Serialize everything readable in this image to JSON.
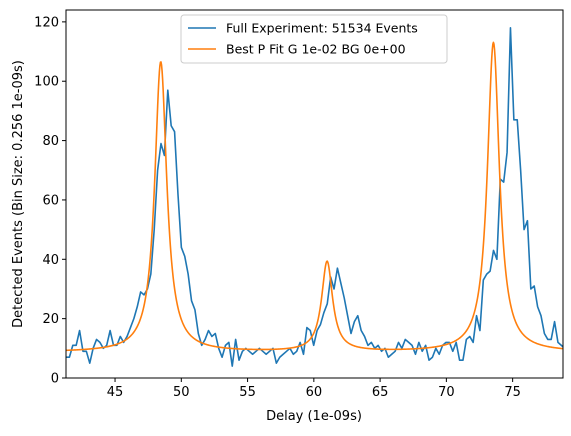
{
  "chart_data": {
    "type": "line",
    "xlabel": "Delay (1e-09s)",
    "ylabel": "Detected Events (Bin Size: 0.256 1e-09s)",
    "xlim": [
      41.3,
      78.8
    ],
    "ylim": [
      0,
      124
    ],
    "xticks": [
      45,
      50,
      55,
      60,
      65,
      70,
      75
    ],
    "xtick_labels": [
      "45",
      "50",
      "55",
      "60",
      "65",
      "70",
      "75"
    ],
    "yticks": [
      0,
      20,
      40,
      60,
      80,
      100,
      120
    ],
    "ytick_labels": [
      "0",
      "20",
      "40",
      "60",
      "80",
      "100",
      "120"
    ],
    "grid": false,
    "legend_position": "top-center",
    "series": [
      {
        "name": "Full Experiment: 51534 Events",
        "color": "#1f77b4",
        "x_start": 41.3,
        "x_step": 0.256,
        "values": [
          7,
          7,
          11,
          11,
          16,
          9,
          9,
          5,
          10,
          13,
          12,
          10,
          11,
          16,
          11,
          11,
          14,
          12,
          14,
          17,
          20,
          24,
          29,
          28,
          30,
          35,
          50,
          70,
          79,
          75,
          97,
          85,
          83,
          62,
          44,
          41,
          35,
          26,
          23,
          15,
          11,
          13,
          16,
          14,
          15,
          10,
          7,
          11,
          12,
          4,
          13,
          6,
          9,
          10,
          9,
          8,
          9,
          10,
          9,
          8,
          9,
          10,
          5,
          7,
          8,
          9,
          10,
          8,
          9,
          12,
          8,
          17,
          16,
          11,
          16,
          18,
          22,
          25,
          34,
          30,
          37,
          32,
          27,
          21,
          15,
          19,
          21,
          16,
          14,
          11,
          12,
          10,
          11,
          9,
          10,
          7,
          8,
          9,
          12,
          10,
          13,
          12,
          11,
          8,
          12,
          9,
          11,
          6,
          7,
          10,
          8,
          11,
          12,
          12,
          9,
          12,
          6,
          6,
          13,
          14,
          12,
          21,
          16,
          33,
          35,
          36,
          43,
          40,
          67,
          66,
          76,
          118,
          87,
          87,
          70,
          50,
          53,
          30,
          31,
          24,
          21,
          15,
          13,
          13,
          19,
          12,
          11,
          10,
          9,
          14,
          10,
          10,
          16,
          9,
          8,
          8,
          5
        ]
      },
      {
        "name": "Best P Fit G 1e-02 BG 0e+00",
        "color": "#ff7f0e",
        "model": {
          "background": 8.7,
          "peaks": [
            {
              "center": 48.45,
              "amplitude": 97.8,
              "hwhm": 0.55
            },
            {
              "center": 61.0,
              "amplitude": 30.3,
              "hwhm": 0.5
            },
            {
              "center": 73.55,
              "amplitude": 104.3,
              "hwhm": 0.55
            }
          ]
        }
      }
    ]
  }
}
